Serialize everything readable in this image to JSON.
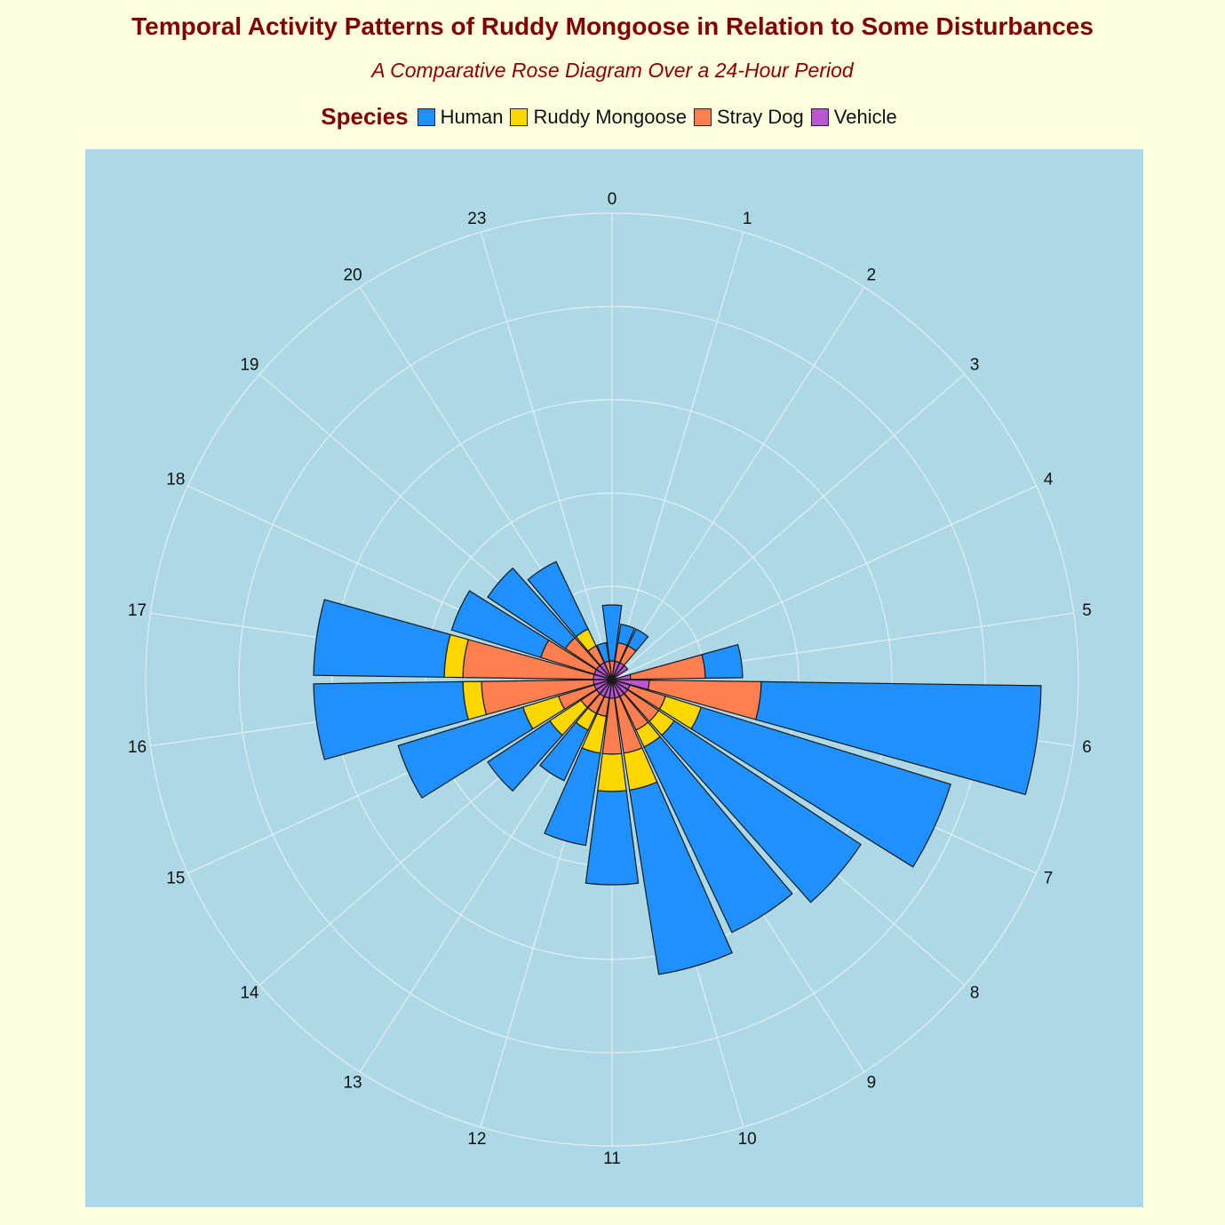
{
  "chart_data": {
    "type": "bar",
    "subtype": "stacked-polar-rose",
    "title": "Temporal Activity Patterns of Ruddy Mongoose in Relation to Some Disturbances",
    "subtitle": "A Comparative Rose Diagram Over a 24-Hour Period",
    "legend_title": "Species",
    "legend_position": "top",
    "angle_labels": [
      "0",
      "1",
      "2",
      "3",
      "4",
      "5",
      "6",
      "7",
      "8",
      "9",
      "10",
      "11",
      "12",
      "13",
      "14",
      "15",
      "16",
      "17",
      "18",
      "19",
      "20",
      "23"
    ],
    "grid": true,
    "stack_order_inner_to_outer": [
      "Vehicle",
      "Stray Dog",
      "Ruddy Mongoose",
      "Human"
    ],
    "series": [
      {
        "name": "Human",
        "color": "#1E90FF",
        "values": [
          3,
          1,
          1,
          0,
          0,
          2,
          15,
          14,
          12,
          11,
          10,
          5,
          5,
          3,
          4,
          7,
          8,
          7,
          5,
          5,
          4,
          1
        ]
      },
      {
        "name": "Ruddy Mongoose",
        "color": "#FFD700",
        "values": [
          0,
          0,
          0,
          0,
          0,
          0,
          0,
          2,
          1,
          1,
          2,
          2,
          2,
          1,
          2,
          2,
          1,
          1,
          0,
          0,
          1,
          0
        ]
      },
      {
        "name": "Stray Dog",
        "color": "#FF7F50",
        "values": [
          1,
          1,
          1,
          0,
          0,
          4,
          6,
          2,
          2,
          2,
          3,
          3,
          1,
          1,
          1,
          2,
          6,
          7,
          3,
          2,
          1,
          1
        ]
      },
      {
        "name": "Vehicle",
        "color": "#BA55D3",
        "values": [
          0,
          1,
          1,
          1,
          0,
          1,
          2,
          1,
          1,
          1,
          1,
          1,
          1,
          1,
          1,
          1,
          1,
          1,
          1,
          1,
          1,
          0
        ]
      }
    ]
  }
}
